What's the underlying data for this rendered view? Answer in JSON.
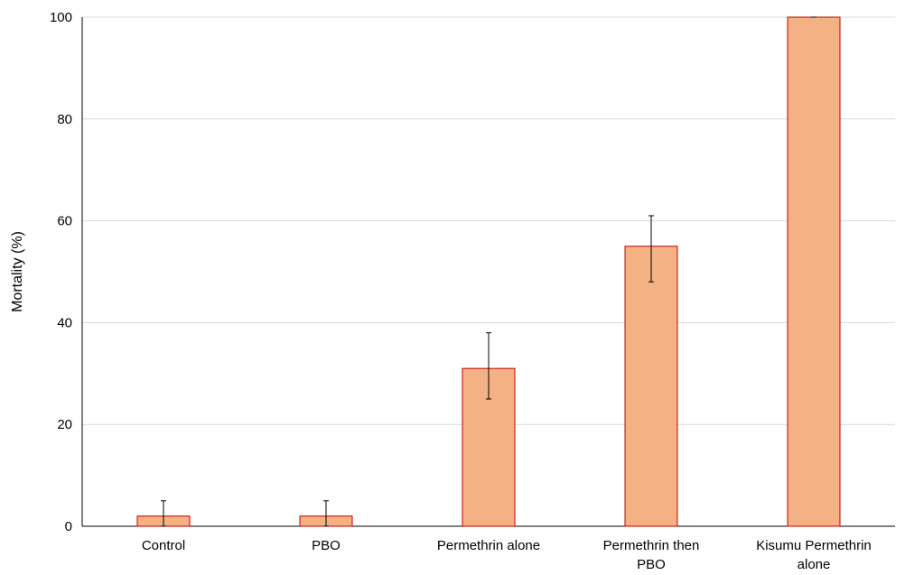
{
  "chart_data": {
    "type": "bar",
    "title": "",
    "xlabel": "",
    "ylabel": "Mortality (%)",
    "ylim": [
      0,
      100
    ],
    "yticks": [
      0,
      20,
      40,
      60,
      80,
      100
    ],
    "grid": true,
    "categories": [
      [
        "Control"
      ],
      [
        "PBO"
      ],
      [
        "Permethrin alone"
      ],
      [
        "Permethrin then",
        "PBO"
      ],
      [
        "Kisumu Permethrin",
        "alone"
      ]
    ],
    "values": [
      2,
      2,
      31,
      55,
      100
    ],
    "error_bars": [
      {
        "low": 0,
        "high": 5
      },
      {
        "low": 0,
        "high": 5
      },
      {
        "low": 25,
        "high": 38
      },
      {
        "low": 48,
        "high": 61
      },
      {
        "low": 100,
        "high": 100
      }
    ],
    "colors": {
      "bar_fill": "#f4b183",
      "bar_stroke": "#c00000",
      "grid": "#d9d9d9",
      "axis": "#000000",
      "error_bar": "#000000"
    }
  }
}
